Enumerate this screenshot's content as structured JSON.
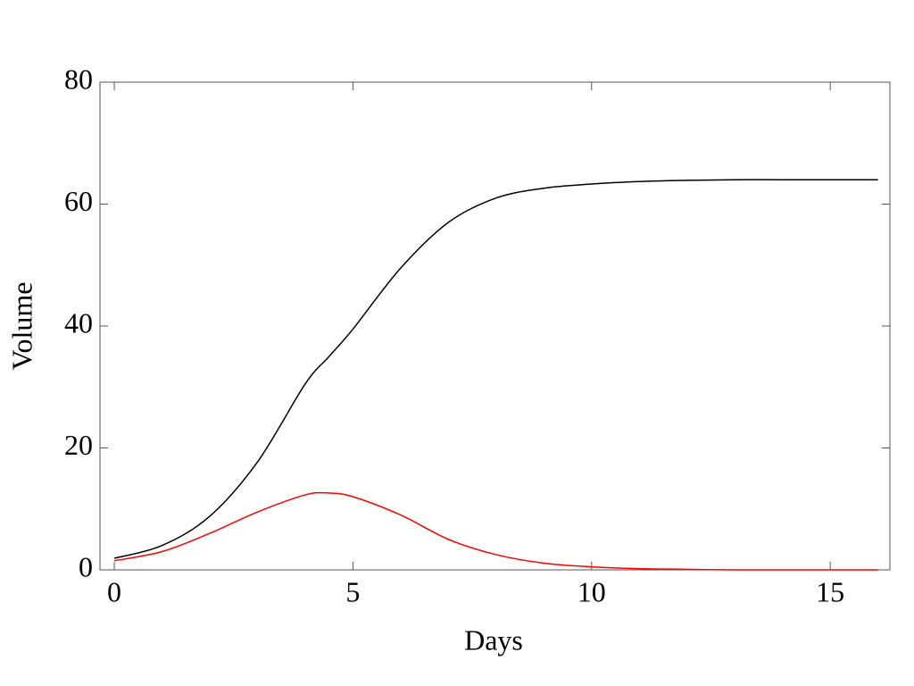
{
  "chart_data": {
    "type": "line",
    "x_label": "Days",
    "y_label": "Volume",
    "x": [
      0,
      1,
      2,
      3,
      4,
      4.5,
      5,
      6,
      7,
      8,
      9,
      10,
      11,
      12,
      13,
      14,
      15,
      16
    ],
    "series": [
      {
        "color": "#000000",
        "values": [
          1.9,
          4,
          8.8,
          17.7,
          30.5,
          35,
          39.5,
          49.5,
          57,
          61,
          62.6,
          63.3,
          63.7,
          63.9,
          64,
          64,
          64,
          64
        ]
      },
      {
        "color": "#ff0000",
        "values": [
          1.5,
          3,
          6,
          9.5,
          12.3,
          12.6,
          12,
          9,
          5,
          2.5,
          1.1,
          0.5,
          0.2,
          0.1,
          0,
          0,
          0,
          0
        ]
      }
    ],
    "xlim": [
      -0.3,
      16.25
    ],
    "ylim": [
      0,
      80
    ],
    "xticks": [
      0,
      5,
      10,
      15
    ],
    "yticks": [
      0,
      20,
      40,
      60,
      80
    ]
  }
}
